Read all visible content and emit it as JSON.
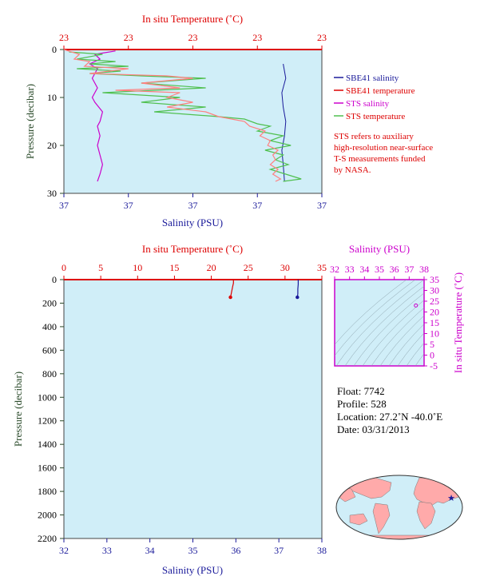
{
  "colors": {
    "plot_bg": "#d0eef8",
    "salinity": "#1a1a9a",
    "temperature": "#dd0000",
    "sts_salinity": "#cc00cc",
    "sts_temperature": "#50c050",
    "sbe_temperature": "#ff8080",
    "pressure_label": "#2a4a2a",
    "ts_axis": "#cc00cc",
    "ts_bg": "#d0eef8",
    "map_land": "#ffaaaa",
    "map_ocean": "#d0eef8"
  },
  "chart_data": [
    {
      "id": "upper",
      "type": "line",
      "top_axis": {
        "label": "In situ Temperature (˚C)",
        "ticks": [
          "23",
          "23",
          "23",
          "23",
          "23"
        ]
      },
      "bottom_axis": {
        "label": "Salinity (PSU)",
        "ticks": [
          "37",
          "37",
          "37",
          "37",
          "37"
        ]
      },
      "y_axis": {
        "label": "Pressure (decibar)",
        "range": [
          0,
          30
        ],
        "ticks": [
          "0",
          "10",
          "20",
          "30"
        ]
      },
      "legend": [
        "SBE41 salinity",
        "SBE41 temperature",
        "STS salinity",
        "STS temperature"
      ],
      "note": [
        "STS refers to auxiliary",
        "high-resolution near-surface",
        "T-S measurements funded",
        "by NASA."
      ],
      "series": [
        {
          "key": "sbe41_salinity",
          "points": [
            [
              0.85,
              3
            ],
            [
              0.86,
              6
            ],
            [
              0.845,
              9
            ],
            [
              0.85,
              12
            ],
            [
              0.86,
              15
            ],
            [
              0.855,
              18
            ],
            [
              0.845,
              21
            ],
            [
              0.85,
              24
            ],
            [
              0.855,
              27.5
            ]
          ]
        },
        {
          "key": "sts_salinity",
          "points": [
            [
              0.2,
              0.3
            ],
            [
              0.12,
              1
            ],
            [
              0.14,
              2
            ],
            [
              0.1,
              3
            ],
            [
              0.13,
              4
            ],
            [
              0.11,
              6
            ],
            [
              0.13,
              8
            ],
            [
              0.11,
              10
            ],
            [
              0.12,
              11
            ],
            [
              0.15,
              13
            ],
            [
              0.14,
              15
            ],
            [
              0.13,
              16
            ],
            [
              0.14,
              18
            ],
            [
              0.13,
              20
            ],
            [
              0.14,
              22
            ],
            [
              0.15,
              24
            ],
            [
              0.14,
              26
            ],
            [
              0.13,
              27.5
            ]
          ]
        },
        {
          "key": "sts_temperature",
          "points": [
            [
              0.02,
              0.5
            ],
            [
              0.15,
              1
            ],
            [
              0.05,
              2
            ],
            [
              0.2,
              2.5
            ],
            [
              0.1,
              3
            ],
            [
              0.25,
              3.5
            ],
            [
              0.05,
              4
            ],
            [
              0.22,
              4.5
            ],
            [
              0.1,
              5
            ],
            [
              0.3,
              5.5
            ],
            [
              0.55,
              6
            ],
            [
              0.3,
              7
            ],
            [
              0.55,
              8
            ],
            [
              0.15,
              9
            ],
            [
              0.45,
              10
            ],
            [
              0.3,
              11
            ],
            [
              0.55,
              12
            ],
            [
              0.35,
              13
            ],
            [
              0.6,
              14
            ],
            [
              0.7,
              14.5
            ],
            [
              0.75,
              15.5
            ],
            [
              0.8,
              16
            ],
            [
              0.75,
              17
            ],
            [
              0.85,
              18
            ],
            [
              0.8,
              19
            ],
            [
              0.88,
              20
            ],
            [
              0.78,
              21
            ],
            [
              0.85,
              22
            ],
            [
              0.82,
              23
            ],
            [
              0.87,
              24
            ],
            [
              0.8,
              25
            ],
            [
              0.86,
              26
            ],
            [
              0.92,
              27
            ],
            [
              0.85,
              27.5
            ]
          ]
        },
        {
          "key": "sbe41_temperature",
          "points": [
            [
              0.0,
              0
            ],
            [
              0.06,
              1
            ],
            [
              0.04,
              2
            ],
            [
              0.1,
              2.5
            ],
            [
              0.08,
              3.5
            ],
            [
              0.25,
              4
            ],
            [
              0.1,
              5
            ],
            [
              0.4,
              5.5
            ],
            [
              0.5,
              6
            ],
            [
              0.3,
              7
            ],
            [
              0.45,
              8
            ],
            [
              0.2,
              8.5
            ],
            [
              0.45,
              9
            ],
            [
              0.4,
              10
            ],
            [
              0.5,
              11
            ],
            [
              0.4,
              12
            ],
            [
              0.55,
              13
            ],
            [
              0.6,
              14
            ],
            [
              0.7,
              15
            ],
            [
              0.72,
              16
            ],
            [
              0.78,
              17
            ],
            [
              0.76,
              18
            ],
            [
              0.8,
              19
            ],
            [
              0.79,
              20
            ],
            [
              0.83,
              21
            ],
            [
              0.81,
              22
            ],
            [
              0.82,
              23
            ],
            [
              0.8,
              24
            ],
            [
              0.83,
              25
            ],
            [
              0.81,
              26
            ],
            [
              0.84,
              27
            ],
            [
              0.82,
              27.5
            ]
          ]
        }
      ]
    },
    {
      "id": "lower",
      "type": "line",
      "top_axis": {
        "label": "In situ Temperature (˚C)",
        "range": [
          0,
          35
        ],
        "ticks": [
          "0",
          "5",
          "10",
          "15",
          "20",
          "25",
          "30",
          "35"
        ]
      },
      "bottom_axis": {
        "label": "Salinity (PSU)",
        "range": [
          32,
          38
        ],
        "ticks": [
          "32",
          "33",
          "34",
          "35",
          "36",
          "37",
          "38"
        ]
      },
      "y_axis": {
        "label": "Pressure (decibar)",
        "range": [
          0,
          2200
        ],
        "ticks": [
          "0",
          "200",
          "400",
          "600",
          "800",
          "1000",
          "1200",
          "1400",
          "1600",
          "1800",
          "2000",
          "2200"
        ]
      },
      "series": [
        {
          "key": "temperature",
          "axis": "top",
          "points": [
            [
              23.0,
              0
            ],
            [
              23.0,
              30
            ],
            [
              22.9,
              60
            ],
            [
              22.8,
              90
            ],
            [
              22.7,
              120
            ],
            [
              22.6,
              150
            ]
          ]
        },
        {
          "key": "salinity",
          "axis": "bottom",
          "points": [
            [
              37.45,
              0
            ],
            [
              37.45,
              40
            ],
            [
              37.44,
              80
            ],
            [
              37.44,
              120
            ],
            [
              37.43,
              150
            ]
          ]
        }
      ]
    },
    {
      "id": "ts_diagram",
      "type": "scatter",
      "top_axis": {
        "label": "Salinity (PSU)",
        "range": [
          32,
          38
        ],
        "ticks": [
          "32",
          "33",
          "34",
          "35",
          "36",
          "37",
          "38"
        ]
      },
      "right_axis": {
        "label": "In situ Temperature (˚C)",
        "range": [
          -5,
          35
        ],
        "ticks": [
          "35",
          "30",
          "25",
          "20",
          "15",
          "10",
          "5",
          "0",
          "-5"
        ]
      },
      "points": [
        [
          37.45,
          23.0
        ]
      ]
    }
  ],
  "info": {
    "float": "Float:  7742",
    "profile": "Profile:  528",
    "location": "Location:  27.2˚N  -40.0˚E",
    "date": "Date:  03/31/2013"
  },
  "map": {
    "marker_lon": -40.0,
    "marker_lat": 27.2
  }
}
